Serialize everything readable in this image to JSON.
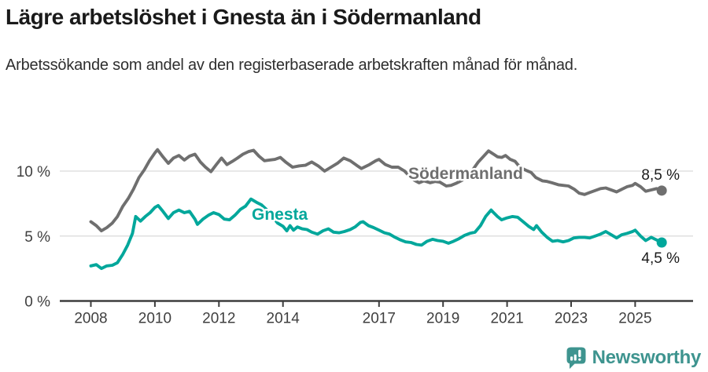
{
  "header": {
    "title": "Lägre arbetslöshet i Gnesta än i Södermanland",
    "subtitle": "Arbetssökande som andel av den registerbaserade arbetskraften månad för månad."
  },
  "chart_data": {
    "type": "line",
    "unit": "%",
    "title": "Lägre arbetslöshet i Gnesta än i Södermanland",
    "xlabel": "",
    "ylabel": "Arbetssökande som andel av den registerbaserade arbetskraften",
    "x_range": [
      2008,
      2025.83
    ],
    "ylim": [
      0,
      12.5
    ],
    "grid": "horizontal-light",
    "legend_position": "inline-labels",
    "yticks": [
      {
        "value": 0,
        "label": "0 %"
      },
      {
        "value": 5,
        "label": "5 %"
      },
      {
        "value": 10,
        "label": "10 %"
      }
    ],
    "xticks": [
      {
        "value": 2008,
        "label": "2008"
      },
      {
        "value": 2010,
        "label": "2010"
      },
      {
        "value": 2012,
        "label": "2012"
      },
      {
        "value": 2014,
        "label": "2014"
      },
      {
        "value": 2017,
        "label": "2017"
      },
      {
        "value": 2019,
        "label": "2019"
      },
      {
        "value": 2021,
        "label": "2021"
      },
      {
        "value": 2023,
        "label": "2023"
      },
      {
        "value": 2025,
        "label": "2025"
      }
    ],
    "series": [
      {
        "name": "Södermanland",
        "color": "#6f6f6f",
        "end_label": "8,5 %",
        "end_value": 8.5,
        "points": [
          [
            2008.0,
            6.1
          ],
          [
            2008.17,
            5.8
          ],
          [
            2008.33,
            5.4
          ],
          [
            2008.5,
            5.65
          ],
          [
            2008.67,
            6.0
          ],
          [
            2008.83,
            6.5
          ],
          [
            2009.0,
            7.3
          ],
          [
            2009.17,
            7.9
          ],
          [
            2009.33,
            8.6
          ],
          [
            2009.5,
            9.5
          ],
          [
            2009.67,
            10.1
          ],
          [
            2009.83,
            10.8
          ],
          [
            2010.0,
            11.4
          ],
          [
            2010.08,
            11.65
          ],
          [
            2010.25,
            11.1
          ],
          [
            2010.42,
            10.6
          ],
          [
            2010.58,
            11.0
          ],
          [
            2010.75,
            11.2
          ],
          [
            2010.92,
            10.85
          ],
          [
            2011.08,
            11.15
          ],
          [
            2011.25,
            11.3
          ],
          [
            2011.42,
            10.7
          ],
          [
            2011.58,
            10.3
          ],
          [
            2011.75,
            9.95
          ],
          [
            2011.92,
            10.5
          ],
          [
            2012.08,
            11.0
          ],
          [
            2012.25,
            10.5
          ],
          [
            2012.42,
            10.75
          ],
          [
            2012.58,
            11.0
          ],
          [
            2012.75,
            11.3
          ],
          [
            2012.92,
            11.5
          ],
          [
            2013.08,
            11.6
          ],
          [
            2013.25,
            11.15
          ],
          [
            2013.42,
            10.8
          ],
          [
            2013.58,
            10.85
          ],
          [
            2013.75,
            10.9
          ],
          [
            2013.92,
            11.05
          ],
          [
            2014.08,
            10.7
          ],
          [
            2014.3,
            10.3
          ],
          [
            2014.5,
            10.4
          ],
          [
            2014.7,
            10.45
          ],
          [
            2014.9,
            10.7
          ],
          [
            2015.1,
            10.4
          ],
          [
            2015.3,
            10.0
          ],
          [
            2015.5,
            10.3
          ],
          [
            2015.7,
            10.6
          ],
          [
            2015.9,
            11.0
          ],
          [
            2016.1,
            10.8
          ],
          [
            2016.3,
            10.45
          ],
          [
            2016.45,
            10.2
          ],
          [
            2016.7,
            10.5
          ],
          [
            2016.9,
            10.8
          ],
          [
            2017.0,
            10.9
          ],
          [
            2017.2,
            10.5
          ],
          [
            2017.4,
            10.3
          ],
          [
            2017.6,
            10.3
          ],
          [
            2017.8,
            10.0
          ],
          [
            2017.95,
            9.6
          ],
          [
            2018.1,
            9.3
          ],
          [
            2018.25,
            9.1
          ],
          [
            2018.4,
            9.25
          ],
          [
            2018.6,
            9.1
          ],
          [
            2018.75,
            9.2
          ],
          [
            2018.9,
            9.15
          ],
          [
            2019.1,
            8.85
          ],
          [
            2019.25,
            8.9
          ],
          [
            2019.4,
            9.05
          ],
          [
            2019.6,
            9.3
          ],
          [
            2019.75,
            9.6
          ],
          [
            2019.9,
            10.0
          ],
          [
            2020.1,
            10.7
          ],
          [
            2020.25,
            11.1
          ],
          [
            2020.42,
            11.55
          ],
          [
            2020.58,
            11.3
          ],
          [
            2020.7,
            11.1
          ],
          [
            2020.83,
            11.05
          ],
          [
            2020.95,
            11.2
          ],
          [
            2021.1,
            10.9
          ],
          [
            2021.25,
            10.75
          ],
          [
            2021.4,
            10.3
          ],
          [
            2021.6,
            10.05
          ],
          [
            2021.75,
            9.9
          ],
          [
            2021.9,
            9.5
          ],
          [
            2022.1,
            9.25
          ],
          [
            2022.25,
            9.2
          ],
          [
            2022.4,
            9.1
          ],
          [
            2022.6,
            8.95
          ],
          [
            2022.75,
            8.9
          ],
          [
            2022.92,
            8.85
          ],
          [
            2023.1,
            8.6
          ],
          [
            2023.25,
            8.3
          ],
          [
            2023.42,
            8.2
          ],
          [
            2023.58,
            8.35
          ],
          [
            2023.75,
            8.5
          ],
          [
            2023.92,
            8.65
          ],
          [
            2024.08,
            8.7
          ],
          [
            2024.25,
            8.55
          ],
          [
            2024.42,
            8.4
          ],
          [
            2024.58,
            8.6
          ],
          [
            2024.75,
            8.8
          ],
          [
            2024.92,
            8.9
          ],
          [
            2025.0,
            9.05
          ],
          [
            2025.17,
            8.8
          ],
          [
            2025.33,
            8.45
          ],
          [
            2025.5,
            8.55
          ],
          [
            2025.67,
            8.65
          ],
          [
            2025.83,
            8.5
          ]
        ]
      },
      {
        "name": "Gnesta",
        "color": "#00a79b",
        "end_label": "4,5 %",
        "end_value": 4.5,
        "points": [
          [
            2008.0,
            2.7
          ],
          [
            2008.17,
            2.8
          ],
          [
            2008.33,
            2.5
          ],
          [
            2008.5,
            2.7
          ],
          [
            2008.67,
            2.75
          ],
          [
            2008.83,
            2.95
          ],
          [
            2009.0,
            3.6
          ],
          [
            2009.15,
            4.3
          ],
          [
            2009.3,
            5.2
          ],
          [
            2009.4,
            6.5
          ],
          [
            2009.55,
            6.15
          ],
          [
            2009.7,
            6.5
          ],
          [
            2009.85,
            6.8
          ],
          [
            2010.0,
            7.2
          ],
          [
            2010.1,
            7.35
          ],
          [
            2010.25,
            6.9
          ],
          [
            2010.42,
            6.35
          ],
          [
            2010.58,
            6.8
          ],
          [
            2010.75,
            7.0
          ],
          [
            2010.92,
            6.8
          ],
          [
            2011.08,
            6.9
          ],
          [
            2011.25,
            6.3
          ],
          [
            2011.33,
            5.9
          ],
          [
            2011.5,
            6.3
          ],
          [
            2011.67,
            6.6
          ],
          [
            2011.83,
            6.8
          ],
          [
            2012.0,
            6.65
          ],
          [
            2012.17,
            6.3
          ],
          [
            2012.33,
            6.25
          ],
          [
            2012.5,
            6.6
          ],
          [
            2012.67,
            7.05
          ],
          [
            2012.83,
            7.3
          ],
          [
            2013.0,
            7.85
          ],
          [
            2013.17,
            7.6
          ],
          [
            2013.33,
            7.4
          ],
          [
            2013.5,
            7.0
          ],
          [
            2013.67,
            6.5
          ],
          [
            2013.83,
            6.0
          ],
          [
            2014.0,
            5.75
          ],
          [
            2014.12,
            5.4
          ],
          [
            2014.22,
            5.8
          ],
          [
            2014.33,
            5.45
          ],
          [
            2014.45,
            5.7
          ],
          [
            2014.6,
            5.55
          ],
          [
            2014.75,
            5.5
          ],
          [
            2014.9,
            5.3
          ],
          [
            2015.08,
            5.15
          ],
          [
            2015.25,
            5.4
          ],
          [
            2015.42,
            5.55
          ],
          [
            2015.58,
            5.3
          ],
          [
            2015.75,
            5.25
          ],
          [
            2015.92,
            5.35
          ],
          [
            2016.1,
            5.5
          ],
          [
            2016.25,
            5.7
          ],
          [
            2016.42,
            6.05
          ],
          [
            2016.5,
            6.1
          ],
          [
            2016.67,
            5.8
          ],
          [
            2016.83,
            5.65
          ],
          [
            2017.0,
            5.45
          ],
          [
            2017.17,
            5.25
          ],
          [
            2017.33,
            5.15
          ],
          [
            2017.5,
            4.9
          ],
          [
            2017.67,
            4.7
          ],
          [
            2017.83,
            4.55
          ],
          [
            2018.0,
            4.5
          ],
          [
            2018.17,
            4.35
          ],
          [
            2018.33,
            4.3
          ],
          [
            2018.5,
            4.6
          ],
          [
            2018.67,
            4.75
          ],
          [
            2018.83,
            4.65
          ],
          [
            2019.0,
            4.6
          ],
          [
            2019.17,
            4.45
          ],
          [
            2019.33,
            4.6
          ],
          [
            2019.5,
            4.8
          ],
          [
            2019.67,
            5.05
          ],
          [
            2019.83,
            5.2
          ],
          [
            2020.0,
            5.3
          ],
          [
            2020.17,
            5.8
          ],
          [
            2020.33,
            6.5
          ],
          [
            2020.5,
            7.0
          ],
          [
            2020.6,
            6.75
          ],
          [
            2020.7,
            6.5
          ],
          [
            2020.83,
            6.25
          ],
          [
            2021.0,
            6.4
          ],
          [
            2021.17,
            6.5
          ],
          [
            2021.33,
            6.45
          ],
          [
            2021.5,
            6.1
          ],
          [
            2021.67,
            5.75
          ],
          [
            2021.83,
            5.5
          ],
          [
            2021.92,
            5.8
          ],
          [
            2022.08,
            5.3
          ],
          [
            2022.25,
            4.9
          ],
          [
            2022.42,
            4.6
          ],
          [
            2022.58,
            4.65
          ],
          [
            2022.75,
            4.55
          ],
          [
            2022.92,
            4.65
          ],
          [
            2023.08,
            4.85
          ],
          [
            2023.25,
            4.9
          ],
          [
            2023.42,
            4.9
          ],
          [
            2023.58,
            4.85
          ],
          [
            2023.75,
            5.0
          ],
          [
            2023.92,
            5.15
          ],
          [
            2024.08,
            5.35
          ],
          [
            2024.25,
            5.1
          ],
          [
            2024.42,
            4.85
          ],
          [
            2024.58,
            5.1
          ],
          [
            2024.75,
            5.2
          ],
          [
            2024.92,
            5.35
          ],
          [
            2025.0,
            5.45
          ],
          [
            2025.17,
            5.0
          ],
          [
            2025.33,
            4.65
          ],
          [
            2025.5,
            4.9
          ],
          [
            2025.67,
            4.7
          ],
          [
            2025.83,
            4.5
          ]
        ]
      }
    ]
  },
  "footer": {
    "brand": "Newsworthy",
    "brand_color": "#3e948f",
    "logo_icon": "speech-bubble-bar-chart"
  }
}
